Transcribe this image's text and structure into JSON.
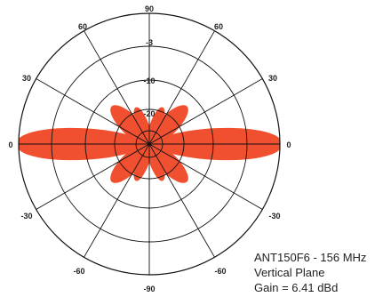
{
  "caption": {
    "model": "ANT150F6 - 156 MHz",
    "plane": "Vertical Plane",
    "gain": "Gain = 6.41 dBd"
  },
  "colors": {
    "pattern_fill": "#f0502f",
    "grid_line": "#111111",
    "text": "#222222"
  },
  "chart_data": {
    "type": "polar-radiation-pattern",
    "angle_labels": {
      "top": "90",
      "upper_left": "60",
      "upper_right": "60",
      "left_upper": "30",
      "right_upper": "30",
      "left": "0",
      "right": "0",
      "left_lower": "-30",
      "right_lower": "-30",
      "lower_left": "-60",
      "lower_right": "-60",
      "bottom": "-90"
    },
    "ring_labels": [
      "-3",
      "-10",
      "-20"
    ],
    "spoke_spacing_deg": 30,
    "lobes": [
      {
        "direction": "0",
        "relative_level": 1.0
      },
      {
        "direction": "0 (left)",
        "relative_level": 1.0
      },
      {
        "direction": "±45",
        "relative_level": 0.38
      },
      {
        "direction": "±70",
        "relative_level": 0.3
      }
    ]
  }
}
